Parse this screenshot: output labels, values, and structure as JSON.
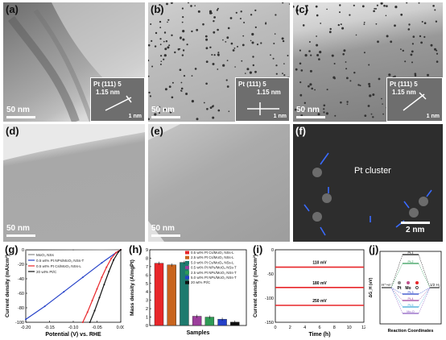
{
  "panels": {
    "a": {
      "label": "(a)",
      "scale": "50 nm",
      "inset_line1": "Pt (111) 5",
      "inset_line2": "1.15 nm",
      "inset_scale": "1 nm"
    },
    "b": {
      "label": "(b)",
      "scale": "50 nm",
      "inset_line1": "Pt (111) 5",
      "inset_line2": "1.15 nm",
      "inset_scale": "1 nm"
    },
    "c": {
      "label": "(c)",
      "scale": "50 nm",
      "inset_line1": "Pt (111) 5",
      "inset_line2": "1.15 nm",
      "inset_scale": "1 nm"
    },
    "d": {
      "label": "(d)",
      "scale": "50 nm"
    },
    "e": {
      "label": "(e)",
      "scale": "50 nm"
    },
    "f": {
      "label": "(f)",
      "scale": "2 nm",
      "annotation": "Pt cluster"
    },
    "g": {
      "label": "(g)"
    },
    "h": {
      "label": "(h)"
    },
    "i": {
      "label": "(i)"
    },
    "j": {
      "label": "(j)"
    }
  },
  "colors": {
    "red": "#e8262a",
    "orange": "#c8641e",
    "teal": "#1e7a6e",
    "purple": "#9c3d9c",
    "green": "#2e9a55",
    "blue": "#2440c8",
    "black": "#111111",
    "grey": "#888888"
  },
  "chart_data": [
    {
      "panel": "g",
      "type": "line",
      "xlabel": "Potential (V) vs. RHE",
      "ylabel": "Current density (mA/cm²)",
      "xlim": [
        -0.2,
        0.0
      ],
      "ylim": [
        -100,
        0
      ],
      "xticks": [
        "-0.20",
        "-0.15",
        "-0.10",
        "-0.05",
        "0.00"
      ],
      "yticks": [
        "0",
        "-20",
        "-40",
        "-60",
        "-80",
        "-100"
      ],
      "series": [
        {
          "name": "MoO₃ NSs",
          "color": "#888888",
          "x": [
            -0.2,
            -0.1,
            0.0
          ],
          "y": [
            -0.5,
            -0.2,
            0
          ]
        },
        {
          "name": "0.5 wt% Pt NPs/MoO₃ NSs-T",
          "color": "#2440c8",
          "x": [
            -0.2,
            -0.16,
            -0.12,
            -0.08,
            -0.04,
            -0.01,
            0.0
          ],
          "y": [
            -96,
            -78,
            -58,
            -38,
            -18,
            -4,
            0
          ]
        },
        {
          "name": "0.5 wt% Pt Cs/MoO₃ NSs-L",
          "color": "#e8262a",
          "x": [
            -0.08,
            -0.07,
            -0.06,
            -0.05,
            -0.04,
            -0.03,
            -0.02,
            -0.01,
            0.0
          ],
          "y": [
            -100,
            -86,
            -70,
            -54,
            -38,
            -24,
            -12,
            -4,
            0
          ]
        },
        {
          "name": "20 wt% Pt/C",
          "color": "#111111",
          "x": [
            -0.065,
            -0.055,
            -0.045,
            -0.035,
            -0.025,
            -0.015,
            -0.005,
            0.0
          ],
          "y": [
            -100,
            -84,
            -66,
            -48,
            -30,
            -14,
            -3,
            0
          ]
        }
      ]
    },
    {
      "panel": "h",
      "type": "bar",
      "xlabel": "Samples",
      "ylabel": "Mass density (A/mgPt)",
      "ylim": [
        0,
        9
      ],
      "yticks": [
        "0",
        "1",
        "2",
        "3",
        "4",
        "5",
        "6",
        "7",
        "8",
        "9"
      ],
      "categories": [
        "0.5 wt% Pt Cs/MoO₃ NSs-L",
        "2.5 wt% Pt Cs/MoO₃ NSs-L",
        "5.0 wt% Pt Cs/MoO₃ NSs-L",
        "0.5 wt% Pt NPs/MoO₃ NSs-T",
        "2.5 wt% Pt NPs/MoO₃ NSs-T",
        "5.0 wt% Pt NPs/MoO₃ NSs-T",
        "20 wt% Pt/C"
      ],
      "values": [
        7.4,
        7.2,
        7.5,
        1.1,
        1.0,
        0.75,
        0.4
      ],
      "colors": [
        "#e8262a",
        "#c8641e",
        "#1e7a6e",
        "#9c3d9c",
        "#2e9a55",
        "#2440c8",
        "#111111"
      ]
    },
    {
      "panel": "i",
      "type": "line",
      "xlabel": "Time (h)",
      "ylabel": "Current density (mA/cm²)",
      "xlim": [
        0,
        12
      ],
      "ylim": [
        -150,
        0
      ],
      "xticks": [
        "0",
        "2",
        "4",
        "6",
        "8",
        "10",
        "12"
      ],
      "yticks": [
        "0",
        "-50",
        "-100",
        "-150"
      ],
      "series": [
        {
          "name": "110 mV",
          "color": "#e8262a",
          "x": [
            0,
            12
          ],
          "y": [
            -36,
            -36
          ]
        },
        {
          "name": "180 mV",
          "color": "#e8262a",
          "x": [
            0,
            12
          ],
          "y": [
            -78,
            -78
          ]
        },
        {
          "name": "250 mV",
          "color": "#e8262a",
          "x": [
            0,
            12
          ],
          "y": [
            -115,
            -115
          ]
        }
      ]
    },
    {
      "panel": "j",
      "type": "diagram",
      "xlabel": "Reaction Coordinates",
      "ylabel": "ΔG_H (eV)",
      "left_label": "H⁺+e⁻",
      "right_label": "1/2 H₂",
      "legend": [
        "Pt",
        "Mo",
        "O"
      ],
      "level_labels": [
        "Pt-1",
        "Pt-2",
        "Pt-3",
        "Pt-4",
        "Pt-5",
        "Mo-O"
      ]
    }
  ]
}
